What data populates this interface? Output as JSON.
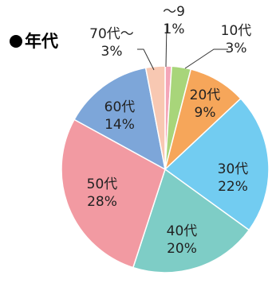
{
  "title": "●年代",
  "chart_data": {
    "type": "pie",
    "title": "年代",
    "slices": [
      {
        "label": "〜9",
        "value": 1,
        "display": "1%",
        "color": "#f4a6b8"
      },
      {
        "label": "10代",
        "value": 3,
        "display": "3%",
        "color": "#a8d57a"
      },
      {
        "label": "20代",
        "value": 9,
        "display": "9%",
        "color": "#f6a65a"
      },
      {
        "label": "30代",
        "value": 22,
        "display": "22%",
        "color": "#72ccf1"
      },
      {
        "label": "40代",
        "value": 20,
        "display": "20%",
        "color": "#7ecdc6"
      },
      {
        "label": "50代",
        "value": 28,
        "display": "28%",
        "color": "#f29aa2"
      },
      {
        "label": "60代",
        "value": 14,
        "display": "14%",
        "color": "#7da6d9"
      },
      {
        "label": "70代〜",
        "value": 3,
        "display": "3%",
        "color": "#f8c8b2"
      }
    ],
    "start": "top",
    "direction": "clockwise"
  }
}
